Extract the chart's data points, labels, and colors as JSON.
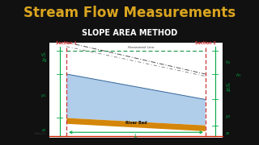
{
  "bg_color": "#111111",
  "title_text": "Stream Flow Measurements",
  "title_color": "#DAA520",
  "diagram_bg": "#FFFFFF",
  "water_color": "#A8C8E8",
  "water_alpha": 0.9,
  "riverbed_top_color": "#D4860A",
  "riverbed_bot_color": "#A05A00",
  "banner_bg": "#2277CC",
  "banner_text": "SLOPE AREA METHOD",
  "banner_text_color": "#FFFFFF",
  "section_line_color": "#CC3333",
  "green_color": "#00AA44",
  "dark_color": "#222222",
  "datum_line_color": "#CC2200",
  "horiz_line_color": "#008833",
  "note_text_color": "#444444"
}
